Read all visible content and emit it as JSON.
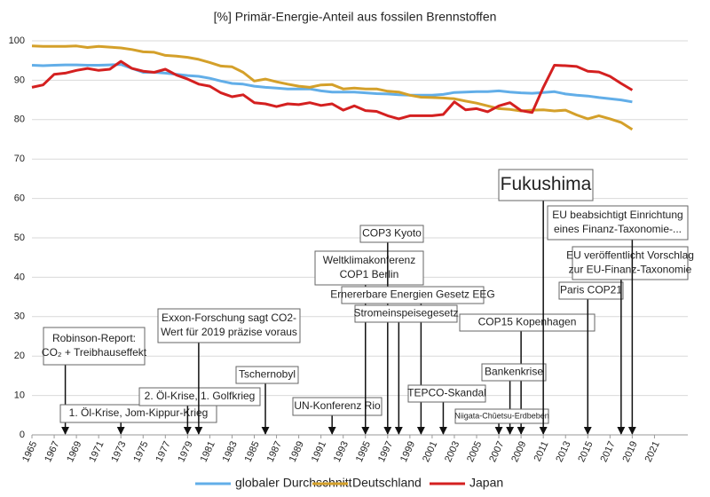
{
  "chart_data": {
    "type": "line",
    "title": "[%] Primär-Energie-Anteil aus fossilen Brennstoffen",
    "x": [
      1965,
      1966,
      1967,
      1968,
      1969,
      1970,
      1971,
      1972,
      1973,
      1974,
      1975,
      1976,
      1977,
      1978,
      1979,
      1980,
      1981,
      1982,
      1983,
      1984,
      1985,
      1986,
      1987,
      1988,
      1989,
      1990,
      1991,
      1992,
      1993,
      1994,
      1995,
      1996,
      1997,
      1998,
      1999,
      2000,
      2001,
      2002,
      2003,
      2004,
      2005,
      2006,
      2007,
      2008,
      2009,
      2010,
      2011,
      2012,
      2013,
      2014,
      2015,
      2016,
      2017,
      2018,
      2019
    ],
    "series": [
      {
        "name": "globaler Durchschnitt",
        "color": "#62aee8",
        "values": [
          93.8,
          93.7,
          93.8,
          93.9,
          93.9,
          93.8,
          93.8,
          93.9,
          94.0,
          93.0,
          92.0,
          92.0,
          91.8,
          91.5,
          91.2,
          91.0,
          90.5,
          89.8,
          89.2,
          89.0,
          88.5,
          88.2,
          88.0,
          87.8,
          87.8,
          87.8,
          87.3,
          87.0,
          87.0,
          87.0,
          86.8,
          86.6,
          86.5,
          86.3,
          86.2,
          86.2,
          86.2,
          86.4,
          86.9,
          87.0,
          87.1,
          87.1,
          87.3,
          87.0,
          86.8,
          86.7,
          86.9,
          87.1,
          86.5,
          86.2,
          86.0,
          85.6,
          85.3,
          85.0,
          84.5
        ]
      },
      {
        "name": "Deutschland",
        "color": "#d4a02a",
        "values": [
          98.7,
          98.6,
          98.6,
          98.6,
          98.7,
          98.3,
          98.6,
          98.4,
          98.2,
          97.8,
          97.2,
          97.1,
          96.3,
          96.1,
          95.8,
          95.3,
          94.5,
          93.6,
          93.4,
          92.0,
          89.8,
          90.3,
          89.6,
          89.0,
          88.5,
          88.2,
          88.8,
          88.9,
          87.8,
          88.0,
          87.8,
          87.8,
          87.2,
          87.0,
          86.2,
          85.7,
          85.6,
          85.5,
          85.3,
          84.7,
          84.2,
          83.5,
          82.8,
          82.6,
          82.2,
          82.4,
          82.5,
          82.2,
          82.4,
          81.2,
          80.2,
          81.0,
          80.2,
          79.3,
          77.5
        ]
      },
      {
        "name": "Japan",
        "color": "#d42020",
        "values": [
          88.2,
          88.8,
          91.5,
          91.8,
          92.5,
          93.0,
          92.5,
          92.8,
          94.8,
          93.0,
          92.3,
          92.0,
          92.8,
          91.3,
          90.3,
          89.0,
          88.5,
          86.8,
          85.8,
          86.3,
          84.3,
          84.0,
          83.3,
          84.0,
          83.8,
          84.3,
          83.6,
          84.0,
          82.4,
          83.5,
          82.3,
          82.1,
          81.0,
          80.2,
          81.0,
          81.0,
          81.0,
          81.3,
          84.5,
          82.5,
          82.8,
          82.0,
          83.5,
          84.3,
          82.3,
          81.8,
          88.2,
          93.8,
          93.7,
          93.5,
          92.3,
          92.1,
          91.0,
          89.2,
          87.5
        ]
      }
    ],
    "xlim": [
      1965,
      2024
    ],
    "xticks": [
      1965,
      1967,
      1969,
      1971,
      1973,
      1975,
      1977,
      1979,
      1981,
      1983,
      1985,
      1987,
      1989,
      1991,
      1993,
      1995,
      1997,
      1999,
      2001,
      2003,
      2005,
      2007,
      2009,
      2011,
      2013,
      2015,
      2017,
      2019,
      2021
    ],
    "ylim": [
      0,
      100
    ],
    "yticks": [
      0,
      10,
      20,
      30,
      40,
      50,
      60,
      70,
      80,
      90,
      100
    ],
    "grid": true,
    "legend": "bottom",
    "annotations": [
      {
        "year": 1968,
        "lines": [
          "Robinson-Report:",
          "CO₂ + Treibhauseffekt"
        ]
      },
      {
        "year": 1973,
        "lines": [
          "1. Öl-Krise, Jom-Kippur-Krieg"
        ]
      },
      {
        "year": 1979,
        "lines": [
          "2. Öl-Krise, 1. Golfkrieg"
        ]
      },
      {
        "year": 1980,
        "lines": [
          "Exxon-Forschung sagt CO2-",
          "Wert für 2019 präzise voraus"
        ]
      },
      {
        "year": 1986,
        "lines": [
          "Tschernobyl"
        ]
      },
      {
        "year": 1992,
        "lines": [
          "UN-Konferenz Rio"
        ]
      },
      {
        "year": 1995,
        "lines": [
          "Weltklimakonferenz",
          "COP1 Berlin"
        ]
      },
      {
        "year": 1997,
        "lines": [
          "COP3 Kyoto"
        ]
      },
      {
        "year": 2000,
        "lines": [
          "Ernererbare Energien Gesetz EEG"
        ]
      },
      {
        "year": 1998,
        "lines": [
          "Stromeinspeisegesetz"
        ]
      },
      {
        "year": 2002,
        "lines": [
          "TEPCO-Skandal"
        ]
      },
      {
        "year": 2009,
        "lines": [
          "COP15 Kopenhagen"
        ]
      },
      {
        "year": 2008,
        "lines": [
          "Bankenkrise"
        ]
      },
      {
        "year": 2007,
        "lines": [
          "Niigata-Chūetsu-Erdbeben"
        ]
      },
      {
        "year": 2011,
        "lines": [
          "Fukushima"
        ]
      },
      {
        "year": 2015,
        "lines": [
          "Paris COP21"
        ]
      },
      {
        "year": 2018,
        "lines": [
          "EU veröffentlicht Vorschlag",
          "zur EU-Finanz-Taxonomie"
        ]
      },
      {
        "year": 2019,
        "lines": [
          "EU beabsichtigt Einrichtung",
          "eines Finanz-Taxonomie-..."
        ]
      }
    ]
  }
}
